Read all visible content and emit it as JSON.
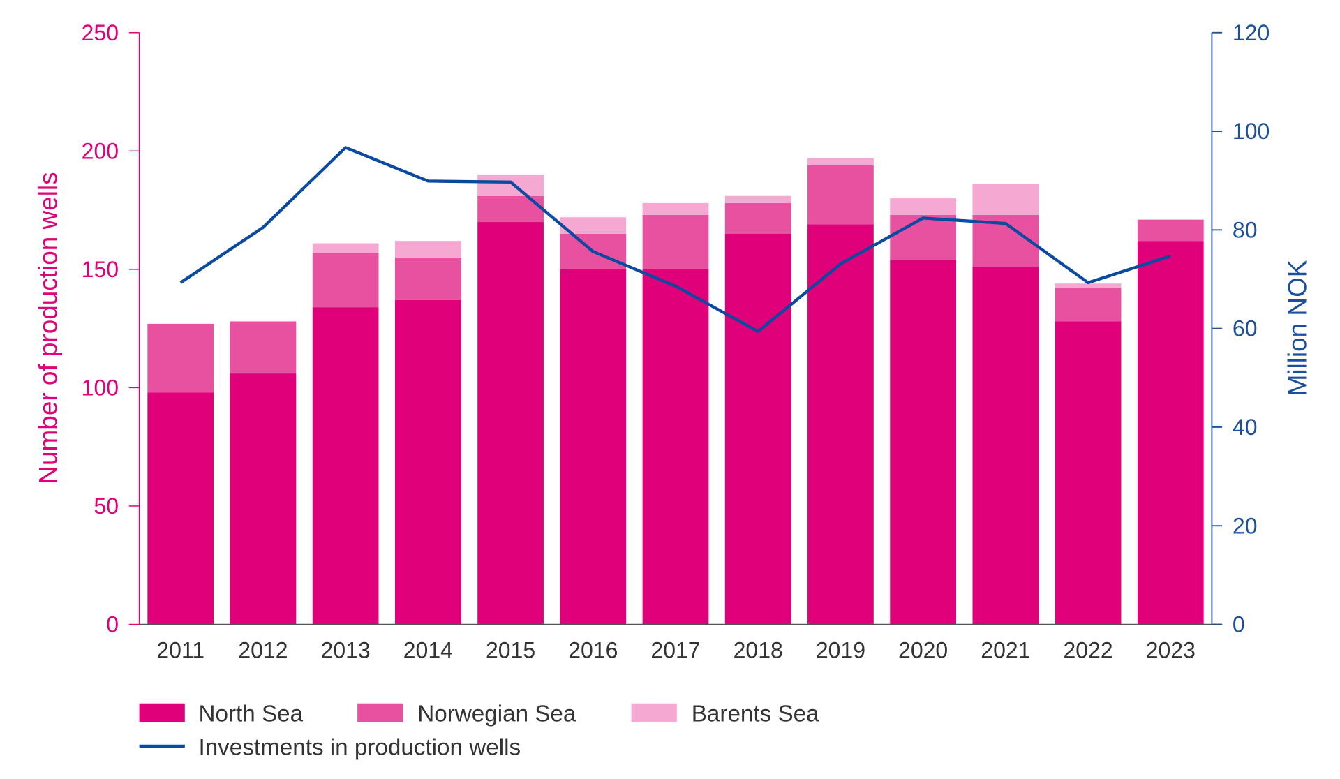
{
  "chart_data": {
    "type": "bar",
    "stacked": true,
    "categories": [
      "2011",
      "2012",
      "2013",
      "2014",
      "2015",
      "2016",
      "2017",
      "2018",
      "2019",
      "2020",
      "2021",
      "2022",
      "2023"
    ],
    "series": [
      {
        "name": "North Sea",
        "axis": "left",
        "color": "#e0007a",
        "values": [
          98,
          106,
          134,
          137,
          170,
          150,
          150,
          165,
          169,
          154,
          151,
          128,
          162
        ]
      },
      {
        "name": "Norwegian Sea",
        "axis": "left",
        "color": "#e8519f",
        "values": [
          29,
          22,
          23,
          18,
          11,
          15,
          23,
          13,
          25,
          19,
          22,
          14,
          9
        ]
      },
      {
        "name": "Barents Sea",
        "axis": "left",
        "color": "#f4a8d2",
        "values": [
          0,
          0,
          4,
          7,
          9,
          7,
          5,
          3,
          3,
          7,
          13,
          2,
          0
        ]
      },
      {
        "name": "Investments in production wells",
        "type": "line",
        "axis": "right",
        "color": "#0a4aa0",
        "values": [
          69.3,
          80.5,
          96.7,
          89.9,
          89.7,
          75.6,
          68.6,
          59.4,
          73.1,
          82.4,
          81.3,
          69.3,
          74.7
        ]
      }
    ],
    "ylabel": "Number of production wells",
    "ylabel_right": "Million NOK",
    "ylim": [
      0,
      250
    ],
    "ylim_right": [
      0,
      120
    ],
    "y_ticks": [
      "0",
      "50",
      "100",
      "150",
      "200",
      "250"
    ],
    "y_ticks_right": [
      "0",
      "20",
      "40",
      "60",
      "80",
      "100",
      "120"
    ],
    "left_axis_color": "#e0007a",
    "right_axis_color": "#1d4f9c",
    "grid": false,
    "legend_position": "bottom-left"
  }
}
